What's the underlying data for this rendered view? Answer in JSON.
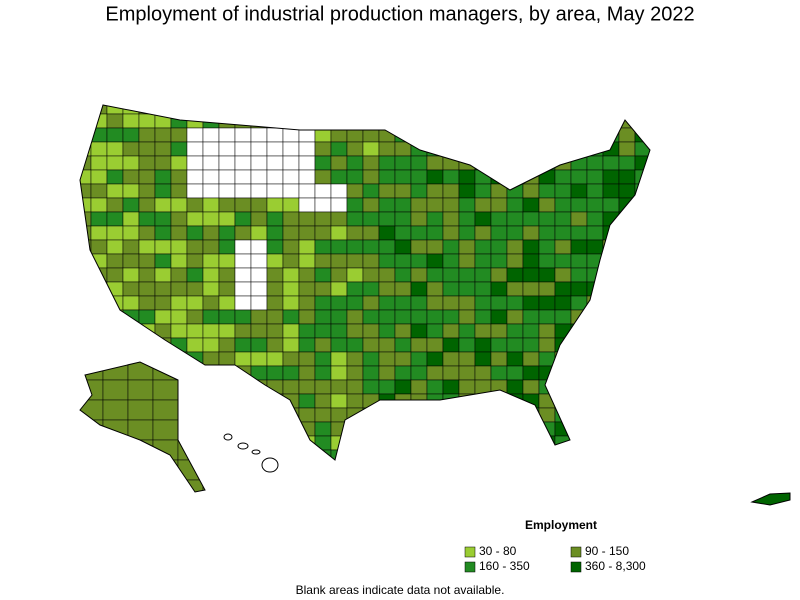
{
  "title": "Employment of industrial production managers, by area, May 2022",
  "legend": {
    "title": "Employment",
    "items": [
      {
        "label": "30 - 80",
        "color": "#9acd32"
      },
      {
        "label": "90 - 150",
        "color": "#6b8e23"
      },
      {
        "label": "160 - 350",
        "color": "#228b22"
      },
      {
        "label": "360 - 8,300",
        "color": "#006400"
      }
    ]
  },
  "footnote": "Blank areas indicate data not available."
}
